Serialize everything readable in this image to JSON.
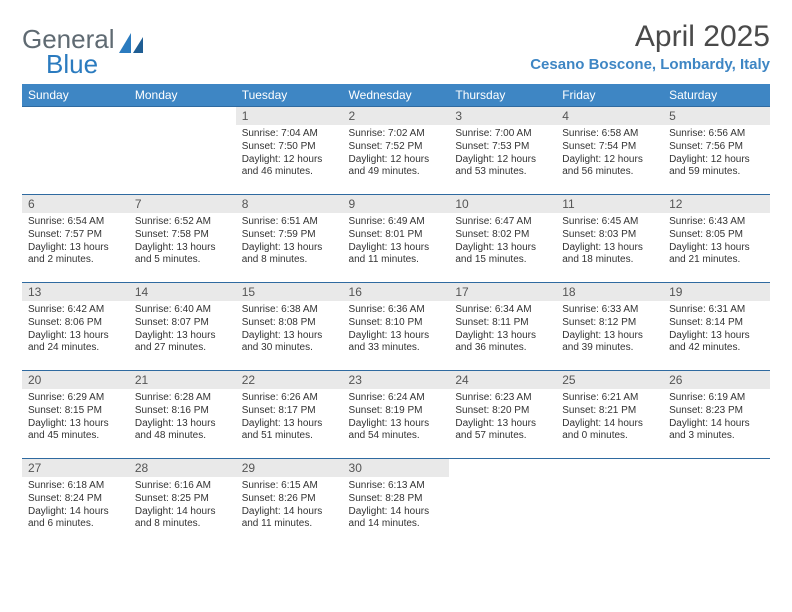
{
  "logo": {
    "textGeneral": "General",
    "textBlue": "Blue"
  },
  "title": "April 2025",
  "location": "Cesano Boscone, Lombardy, Italy",
  "colors": {
    "headerBg": "#3e86c4",
    "headerText": "#ffffff",
    "dayNumBg": "#e9e9e9",
    "rowBorder": "#2f6aa0",
    "logoGray": "#5f6a72",
    "logoBlue": "#2b7bbf"
  },
  "dayNames": [
    "Sunday",
    "Monday",
    "Tuesday",
    "Wednesday",
    "Thursday",
    "Friday",
    "Saturday"
  ],
  "weeks": [
    [
      null,
      null,
      {
        "n": "1",
        "sr": "7:04 AM",
        "ss": "7:50 PM",
        "dl": "12 hours and 46 minutes."
      },
      {
        "n": "2",
        "sr": "7:02 AM",
        "ss": "7:52 PM",
        "dl": "12 hours and 49 minutes."
      },
      {
        "n": "3",
        "sr": "7:00 AM",
        "ss": "7:53 PM",
        "dl": "12 hours and 53 minutes."
      },
      {
        "n": "4",
        "sr": "6:58 AM",
        "ss": "7:54 PM",
        "dl": "12 hours and 56 minutes."
      },
      {
        "n": "5",
        "sr": "6:56 AM",
        "ss": "7:56 PM",
        "dl": "12 hours and 59 minutes."
      }
    ],
    [
      {
        "n": "6",
        "sr": "6:54 AM",
        "ss": "7:57 PM",
        "dl": "13 hours and 2 minutes."
      },
      {
        "n": "7",
        "sr": "6:52 AM",
        "ss": "7:58 PM",
        "dl": "13 hours and 5 minutes."
      },
      {
        "n": "8",
        "sr": "6:51 AM",
        "ss": "7:59 PM",
        "dl": "13 hours and 8 minutes."
      },
      {
        "n": "9",
        "sr": "6:49 AM",
        "ss": "8:01 PM",
        "dl": "13 hours and 11 minutes."
      },
      {
        "n": "10",
        "sr": "6:47 AM",
        "ss": "8:02 PM",
        "dl": "13 hours and 15 minutes."
      },
      {
        "n": "11",
        "sr": "6:45 AM",
        "ss": "8:03 PM",
        "dl": "13 hours and 18 minutes."
      },
      {
        "n": "12",
        "sr": "6:43 AM",
        "ss": "8:05 PM",
        "dl": "13 hours and 21 minutes."
      }
    ],
    [
      {
        "n": "13",
        "sr": "6:42 AM",
        "ss": "8:06 PM",
        "dl": "13 hours and 24 minutes."
      },
      {
        "n": "14",
        "sr": "6:40 AM",
        "ss": "8:07 PM",
        "dl": "13 hours and 27 minutes."
      },
      {
        "n": "15",
        "sr": "6:38 AM",
        "ss": "8:08 PM",
        "dl": "13 hours and 30 minutes."
      },
      {
        "n": "16",
        "sr": "6:36 AM",
        "ss": "8:10 PM",
        "dl": "13 hours and 33 minutes."
      },
      {
        "n": "17",
        "sr": "6:34 AM",
        "ss": "8:11 PM",
        "dl": "13 hours and 36 minutes."
      },
      {
        "n": "18",
        "sr": "6:33 AM",
        "ss": "8:12 PM",
        "dl": "13 hours and 39 minutes."
      },
      {
        "n": "19",
        "sr": "6:31 AM",
        "ss": "8:14 PM",
        "dl": "13 hours and 42 minutes."
      }
    ],
    [
      {
        "n": "20",
        "sr": "6:29 AM",
        "ss": "8:15 PM",
        "dl": "13 hours and 45 minutes."
      },
      {
        "n": "21",
        "sr": "6:28 AM",
        "ss": "8:16 PM",
        "dl": "13 hours and 48 minutes."
      },
      {
        "n": "22",
        "sr": "6:26 AM",
        "ss": "8:17 PM",
        "dl": "13 hours and 51 minutes."
      },
      {
        "n": "23",
        "sr": "6:24 AM",
        "ss": "8:19 PM",
        "dl": "13 hours and 54 minutes."
      },
      {
        "n": "24",
        "sr": "6:23 AM",
        "ss": "8:20 PM",
        "dl": "13 hours and 57 minutes."
      },
      {
        "n": "25",
        "sr": "6:21 AM",
        "ss": "8:21 PM",
        "dl": "14 hours and 0 minutes."
      },
      {
        "n": "26",
        "sr": "6:19 AM",
        "ss": "8:23 PM",
        "dl": "14 hours and 3 minutes."
      }
    ],
    [
      {
        "n": "27",
        "sr": "6:18 AM",
        "ss": "8:24 PM",
        "dl": "14 hours and 6 minutes."
      },
      {
        "n": "28",
        "sr": "6:16 AM",
        "ss": "8:25 PM",
        "dl": "14 hours and 8 minutes."
      },
      {
        "n": "29",
        "sr": "6:15 AM",
        "ss": "8:26 PM",
        "dl": "14 hours and 11 minutes."
      },
      {
        "n": "30",
        "sr": "6:13 AM",
        "ss": "8:28 PM",
        "dl": "14 hours and 14 minutes."
      },
      null,
      null,
      null
    ]
  ],
  "labels": {
    "sunrise": "Sunrise: ",
    "sunset": "Sunset: ",
    "daylight": "Daylight: "
  }
}
